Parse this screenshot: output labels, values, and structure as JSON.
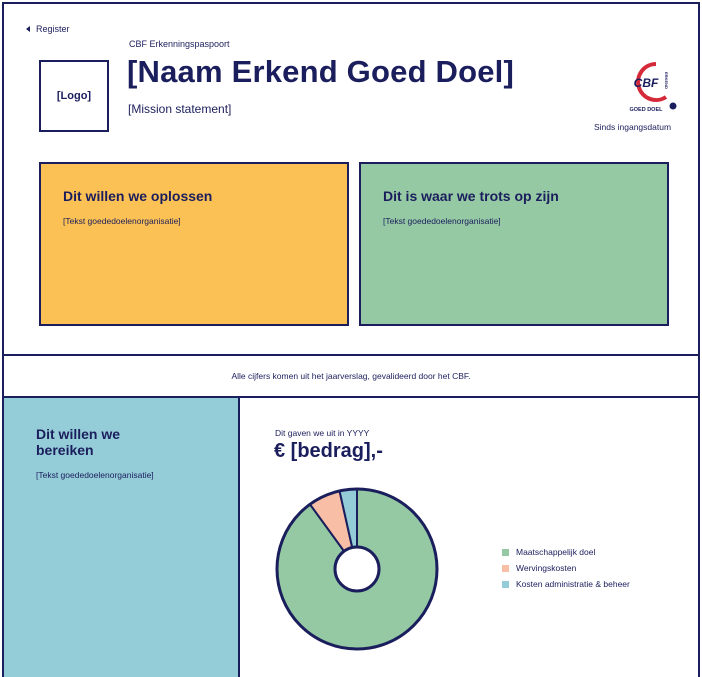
{
  "nav": {
    "back_label": "Register"
  },
  "header": {
    "kicker": "CBF Erkenningspaspoort",
    "title": "[Naam Erkend Goed Doel]",
    "mission": "[Mission statement]",
    "logo_placeholder": "[Logo]",
    "seal": {
      "top_text": "CBF",
      "side_text": "ERKEND",
      "bottom_text": "GOED DOEL"
    },
    "since": "Sinds ingangsdatum"
  },
  "cards": [
    {
      "title": "Dit willen we oplossen",
      "text": "[Tekst goededoelenorganisatie]",
      "color": "#fcc154"
    },
    {
      "title": "Dit is waar we trots op zijn",
      "text": "[Tekst goededoelenorganisatie]",
      "color": "#95c9a4"
    }
  ],
  "band": {
    "text": "Alle cijfers komen uit het jaarverslag, gevalideerd door het CBF."
  },
  "goals": {
    "title": "Dit willen we bereiken",
    "text": "[Tekst goededoelenorganisatie]",
    "color": "#94ccd8"
  },
  "spending": {
    "label": "Dit gaven we uit in YYYY",
    "amount": "€ [bedrag],-"
  },
  "chart_data": {
    "type": "pie",
    "categories": [
      "Maatschappelijk doel",
      "Wervingskosten",
      "Kosten administratie & beheer"
    ],
    "values": [
      90,
      6.5,
      3.5
    ],
    "colors": [
      "#95c9a4",
      "#f8bfa6",
      "#94ccd8"
    ],
    "donut": true
  }
}
